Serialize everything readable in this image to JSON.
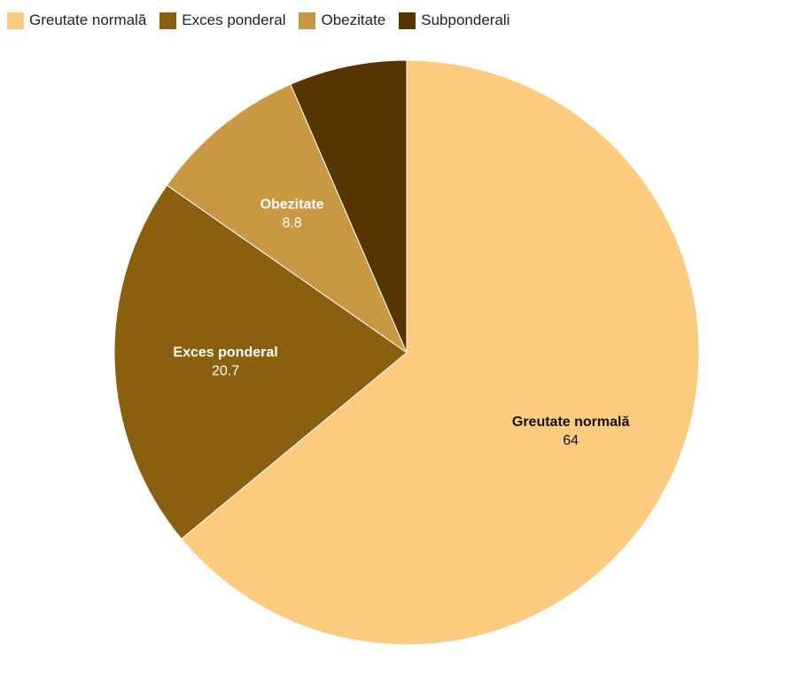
{
  "chart_data": {
    "type": "pie",
    "categories": [
      "Greutate normală",
      "Exces ponderal",
      "Obezitate",
      "Subponderali"
    ],
    "values": [
      64,
      20.7,
      8.8,
      6.5
    ],
    "colors": [
      "#FCCB7E",
      "#8A600E",
      "#C89843",
      "#573500"
    ],
    "label_colors": [
      "#111111",
      "#ffffff",
      "#ffffff",
      "#ffffff"
    ],
    "show_label": [
      true,
      true,
      true,
      false
    ],
    "legend_position": "top-left"
  }
}
